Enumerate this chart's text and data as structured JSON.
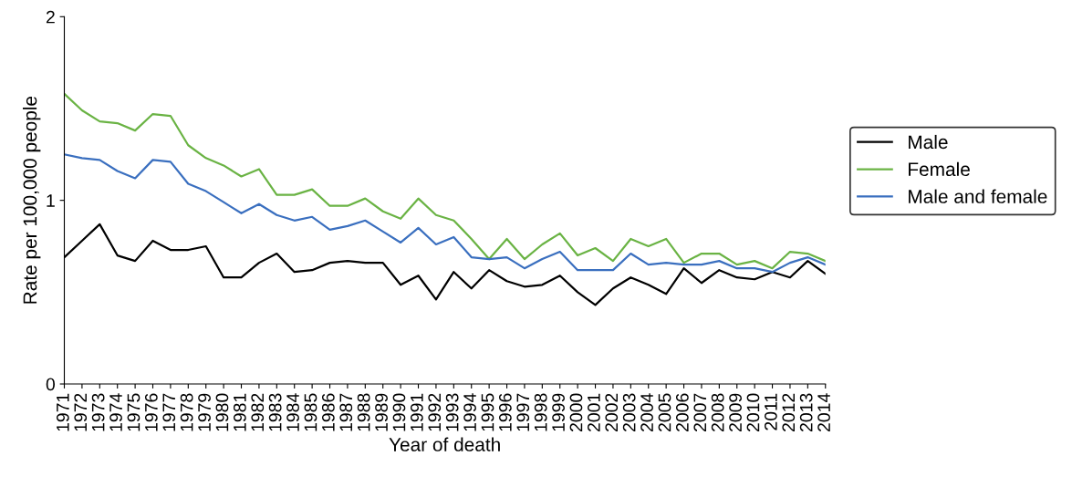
{
  "chart_data": {
    "type": "line",
    "xlabel": "Year of death",
    "ylabel": "Rate per 100,000 people",
    "categories": [
      "1971",
      "1972",
      "1973",
      "1974",
      "1975",
      "1976",
      "1977",
      "1978",
      "1979",
      "1980",
      "1981",
      "1982",
      "1983",
      "1984",
      "1985",
      "1986",
      "1987",
      "1988",
      "1989",
      "1990",
      "1991",
      "1992",
      "1993",
      "1994",
      "1995",
      "1996",
      "1997",
      "1998",
      "1999",
      "2000",
      "2001",
      "2002",
      "2003",
      "2004",
      "2005",
      "2006",
      "2007",
      "2008",
      "2009",
      "2010",
      "2011",
      "2012",
      "2013",
      "2014"
    ],
    "series": [
      {
        "name": "Male",
        "color": "#000000",
        "values": [
          0.69,
          0.78,
          0.87,
          0.7,
          0.67,
          0.78,
          0.73,
          0.73,
          0.75,
          0.58,
          0.58,
          0.66,
          0.71,
          0.61,
          0.62,
          0.66,
          0.67,
          0.66,
          0.66,
          0.54,
          0.59,
          0.46,
          0.61,
          0.52,
          0.62,
          0.56,
          0.53,
          0.54,
          0.59,
          0.5,
          0.43,
          0.52,
          0.58,
          0.54,
          0.49,
          0.63,
          0.55,
          0.62,
          0.58,
          0.57,
          0.61,
          0.58,
          0.67,
          0.6
        ]
      },
      {
        "name": "Female",
        "color": "#6ab344",
        "values": [
          1.58,
          1.49,
          1.43,
          1.42,
          1.38,
          1.47,
          1.46,
          1.3,
          1.23,
          1.19,
          1.13,
          1.17,
          1.03,
          1.03,
          1.06,
          0.97,
          0.97,
          1.01,
          0.94,
          0.9,
          1.01,
          0.92,
          0.89,
          0.79,
          0.68,
          0.79,
          0.68,
          0.76,
          0.82,
          0.7,
          0.74,
          0.67,
          0.79,
          0.75,
          0.79,
          0.66,
          0.71,
          0.71,
          0.65,
          0.67,
          0.63,
          0.72,
          0.71,
          0.67
        ]
      },
      {
        "name": "Male and female",
        "color": "#3a6fbf",
        "values": [
          1.25,
          1.23,
          1.22,
          1.16,
          1.12,
          1.22,
          1.21,
          1.09,
          1.05,
          0.99,
          0.93,
          0.98,
          0.92,
          0.89,
          0.91,
          0.84,
          0.86,
          0.89,
          0.83,
          0.77,
          0.85,
          0.76,
          0.8,
          0.69,
          0.68,
          0.69,
          0.63,
          0.68,
          0.72,
          0.62,
          0.62,
          0.62,
          0.71,
          0.65,
          0.66,
          0.65,
          0.65,
          0.67,
          0.63,
          0.63,
          0.61,
          0.66,
          0.69,
          0.65
        ]
      }
    ],
    "ylim": [
      0,
      2
    ],
    "yticks": [
      0,
      1,
      2
    ],
    "grid": false,
    "legend": "right",
    "marker": "none",
    "line_style": "solid"
  }
}
